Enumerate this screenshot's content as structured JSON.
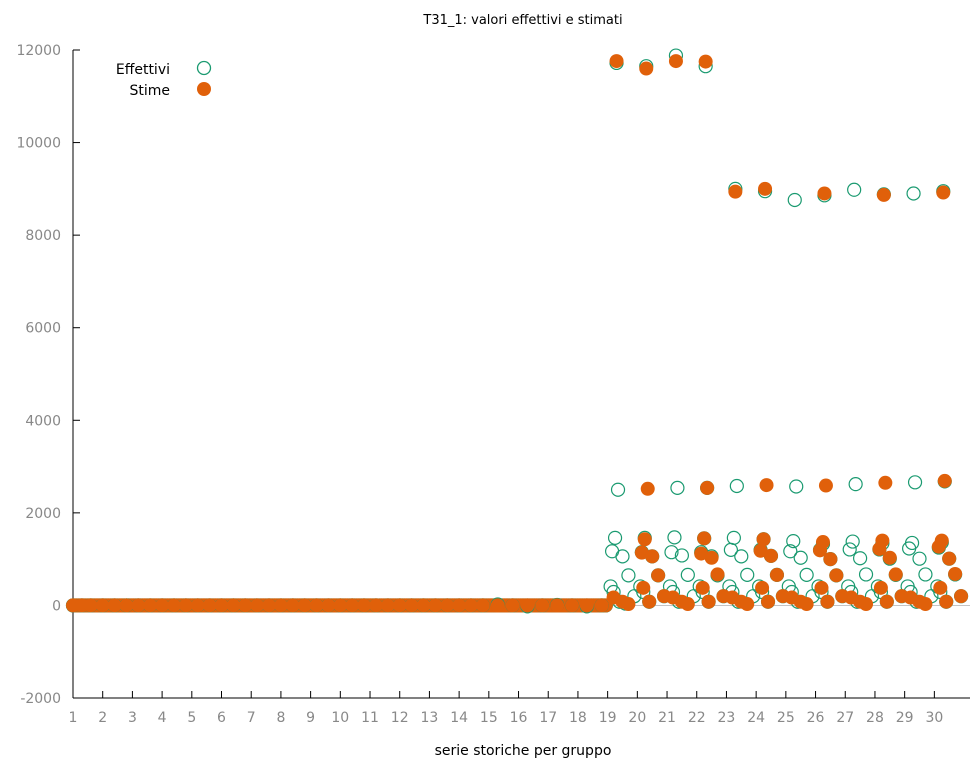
{
  "chart_data": {
    "type": "scatter",
    "title": "T31_1: valori effettivi e stimati",
    "xlabel": "serie storiche per gruppo",
    "ylabel": "",
    "ylim": [
      -2000,
      12000
    ],
    "yticks": [
      "-2000",
      "0",
      "2000",
      "4000",
      "6000",
      "8000",
      "10000",
      "12000"
    ],
    "xticks": [
      "1",
      "2",
      "3",
      "4",
      "5",
      "6",
      "7",
      "8",
      "9",
      "10",
      "11",
      "12",
      "13",
      "14",
      "15",
      "16",
      "17",
      "18",
      "19",
      "20",
      "21",
      "22",
      "23",
      "24",
      "25",
      "26",
      "27",
      "28",
      "29",
      "30"
    ],
    "xlim": [
      1,
      31.2
    ],
    "grid": false,
    "legend_position": "top-left",
    "colors": {
      "effettivi": "#1a9a70",
      "stime": "#e0600a"
    },
    "series": [
      {
        "name": "Effettivi",
        "marker": "open-circle",
        "points": [
          [
            1.0,
            0
          ],
          [
            1.3,
            0
          ],
          [
            1.6,
            0
          ],
          [
            2.0,
            0
          ],
          [
            2.4,
            0
          ],
          [
            2.8,
            0
          ],
          [
            3.2,
            0
          ],
          [
            3.6,
            0
          ],
          [
            4.0,
            0
          ],
          [
            4.4,
            0
          ],
          [
            4.8,
            0
          ],
          [
            5.2,
            0
          ],
          [
            5.6,
            0
          ],
          [
            6.0,
            0
          ],
          [
            6.4,
            0
          ],
          [
            6.8,
            0
          ],
          [
            7.2,
            0
          ],
          [
            7.6,
            0
          ],
          [
            8.0,
            0
          ],
          [
            8.4,
            0
          ],
          [
            8.8,
            0
          ],
          [
            9.2,
            0
          ],
          [
            9.6,
            0
          ],
          [
            10.0,
            0
          ],
          [
            10.4,
            0
          ],
          [
            10.8,
            0
          ],
          [
            11.2,
            0
          ],
          [
            11.6,
            0
          ],
          [
            12.0,
            0
          ],
          [
            12.4,
            0
          ],
          [
            12.8,
            0
          ],
          [
            13.2,
            0
          ],
          [
            13.6,
            0
          ],
          [
            14.0,
            0
          ],
          [
            14.4,
            0
          ],
          [
            14.8,
            0
          ],
          [
            15.3,
            20
          ],
          [
            15.8,
            0
          ],
          [
            16.3,
            -20
          ],
          [
            16.8,
            0
          ],
          [
            17.3,
            10
          ],
          [
            17.8,
            0
          ],
          [
            18.3,
            -20
          ],
          [
            18.8,
            0
          ],
          [
            19.1,
            410
          ],
          [
            19.2,
            290
          ],
          [
            19.15,
            1170
          ],
          [
            19.25,
            1460
          ],
          [
            19.3,
            11720
          ],
          [
            19.35,
            2500
          ],
          [
            19.5,
            1060
          ],
          [
            19.7,
            650
          ],
          [
            19.9,
            200
          ],
          [
            19.4,
            80
          ],
          [
            19.6,
            40
          ],
          [
            20.1,
            410
          ],
          [
            20.2,
            290
          ],
          [
            20.15,
            1150
          ],
          [
            20.25,
            1460
          ],
          [
            20.3,
            11650
          ],
          [
            20.5,
            1060
          ],
          [
            20.7,
            650
          ],
          [
            20.9,
            200
          ],
          [
            20.4,
            80
          ],
          [
            21.1,
            410
          ],
          [
            21.2,
            290
          ],
          [
            21.15,
            1150
          ],
          [
            21.25,
            1470
          ],
          [
            21.3,
            11880
          ],
          [
            21.35,
            2540
          ],
          [
            21.5,
            1080
          ],
          [
            21.7,
            660
          ],
          [
            21.9,
            200
          ],
          [
            21.4,
            80
          ],
          [
            22.1,
            410
          ],
          [
            22.2,
            290
          ],
          [
            22.15,
            1150
          ],
          [
            22.25,
            1450
          ],
          [
            22.3,
            11650
          ],
          [
            22.35,
            2540
          ],
          [
            22.5,
            1060
          ],
          [
            22.7,
            650
          ],
          [
            22.9,
            200
          ],
          [
            22.4,
            80
          ],
          [
            23.1,
            410
          ],
          [
            23.2,
            290
          ],
          [
            23.15,
            1200
          ],
          [
            23.25,
            1460
          ],
          [
            23.3,
            9000
          ],
          [
            23.35,
            2580
          ],
          [
            23.5,
            1060
          ],
          [
            23.7,
            660
          ],
          [
            23.9,
            200
          ],
          [
            23.4,
            80
          ],
          [
            24.1,
            410
          ],
          [
            24.2,
            290
          ],
          [
            24.15,
            1200
          ],
          [
            24.25,
            1430
          ],
          [
            24.3,
            8950
          ],
          [
            24.5,
            1070
          ],
          [
            24.7,
            660
          ],
          [
            24.9,
            200
          ],
          [
            24.4,
            80
          ],
          [
            25.1,
            410
          ],
          [
            25.2,
            290
          ],
          [
            25.15,
            1170
          ],
          [
            25.25,
            1390
          ],
          [
            25.3,
            8760
          ],
          [
            25.35,
            2570
          ],
          [
            25.5,
            1030
          ],
          [
            25.7,
            660
          ],
          [
            25.9,
            200
          ],
          [
            25.4,
            80
          ],
          [
            26.1,
            410
          ],
          [
            26.2,
            290
          ],
          [
            26.15,
            1200
          ],
          [
            26.25,
            1330
          ],
          [
            26.3,
            8860
          ],
          [
            26.5,
            1000
          ],
          [
            26.7,
            650
          ],
          [
            26.9,
            200
          ],
          [
            26.4,
            80
          ],
          [
            27.1,
            410
          ],
          [
            27.2,
            290
          ],
          [
            27.15,
            1210
          ],
          [
            27.25,
            1380
          ],
          [
            27.3,
            8980
          ],
          [
            27.35,
            2620
          ],
          [
            27.5,
            1020
          ],
          [
            27.7,
            670
          ],
          [
            27.9,
            200
          ],
          [
            27.4,
            80
          ],
          [
            28.1,
            410
          ],
          [
            28.2,
            290
          ],
          [
            28.15,
            1210
          ],
          [
            28.25,
            1340
          ],
          [
            28.3,
            8880
          ],
          [
            28.5,
            1010
          ],
          [
            28.7,
            660
          ],
          [
            28.9,
            200
          ],
          [
            28.4,
            80
          ],
          [
            29.1,
            410
          ],
          [
            29.2,
            290
          ],
          [
            29.15,
            1230
          ],
          [
            29.25,
            1350
          ],
          [
            29.3,
            8900
          ],
          [
            29.35,
            2660
          ],
          [
            29.5,
            1010
          ],
          [
            29.7,
            670
          ],
          [
            29.9,
            200
          ],
          [
            29.4,
            80
          ],
          [
            30.1,
            410
          ],
          [
            30.2,
            290
          ],
          [
            30.15,
            1250
          ],
          [
            30.25,
            1360
          ],
          [
            30.3,
            8950
          ],
          [
            30.35,
            2680
          ],
          [
            30.5,
            1010
          ],
          [
            30.7,
            670
          ],
          [
            30.9,
            200
          ],
          [
            30.4,
            80
          ]
        ]
      },
      {
        "name": "Stime",
        "marker": "filled-circle",
        "points": [
          [
            1.0,
            0
          ],
          [
            1.3,
            0
          ],
          [
            1.6,
            0
          ],
          [
            2.0,
            0
          ],
          [
            2.4,
            0
          ],
          [
            2.8,
            0
          ],
          [
            3.2,
            0
          ],
          [
            3.6,
            0
          ],
          [
            4.0,
            0
          ],
          [
            4.4,
            0
          ],
          [
            4.8,
            0
          ],
          [
            5.2,
            0
          ],
          [
            5.6,
            0
          ],
          [
            6.0,
            0
          ],
          [
            6.4,
            0
          ],
          [
            6.8,
            0
          ],
          [
            7.2,
            0
          ],
          [
            7.6,
            0
          ],
          [
            8.0,
            0
          ],
          [
            8.4,
            0
          ],
          [
            8.8,
            0
          ],
          [
            9.2,
            0
          ],
          [
            9.6,
            0
          ],
          [
            10.0,
            0
          ],
          [
            10.4,
            0
          ],
          [
            10.8,
            0
          ],
          [
            11.2,
            0
          ],
          [
            11.6,
            0
          ],
          [
            12.0,
            0
          ],
          [
            12.4,
            0
          ],
          [
            12.8,
            0
          ],
          [
            13.2,
            0
          ],
          [
            13.6,
            0
          ],
          [
            14.0,
            0
          ],
          [
            14.4,
            0
          ],
          [
            14.8,
            0
          ],
          [
            15.3,
            0
          ],
          [
            15.8,
            0
          ],
          [
            16.3,
            0
          ],
          [
            16.8,
            0
          ],
          [
            17.3,
            0
          ],
          [
            17.8,
            0
          ],
          [
            18.3,
            0
          ],
          [
            18.8,
            0
          ],
          [
            19.3,
            11760
          ],
          [
            19.2,
            170
          ],
          [
            19.5,
            80
          ],
          [
            19.7,
            30
          ],
          [
            20.3,
            11600
          ],
          [
            20.35,
            2520
          ],
          [
            20.25,
            1430
          ],
          [
            20.15,
            1140
          ],
          [
            20.2,
            380
          ],
          [
            20.5,
            1060
          ],
          [
            20.7,
            650
          ],
          [
            20.9,
            200
          ],
          [
            20.4,
            80
          ],
          [
            21.3,
            11760
          ],
          [
            21.2,
            170
          ],
          [
            21.5,
            80
          ],
          [
            21.7,
            30
          ],
          [
            22.3,
            11750
          ],
          [
            22.35,
            2540
          ],
          [
            22.25,
            1450
          ],
          [
            22.15,
            1120
          ],
          [
            22.2,
            380
          ],
          [
            22.5,
            1030
          ],
          [
            22.7,
            670
          ],
          [
            22.9,
            200
          ],
          [
            22.4,
            80
          ],
          [
            23.3,
            8940
          ],
          [
            23.2,
            170
          ],
          [
            23.5,
            80
          ],
          [
            23.7,
            30
          ],
          [
            24.3,
            9000
          ],
          [
            24.35,
            2600
          ],
          [
            24.25,
            1430
          ],
          [
            24.15,
            1180
          ],
          [
            24.2,
            380
          ],
          [
            24.5,
            1070
          ],
          [
            24.7,
            660
          ],
          [
            24.9,
            200
          ],
          [
            24.4,
            80
          ],
          [
            25.2,
            170
          ],
          [
            25.5,
            80
          ],
          [
            25.7,
            30
          ],
          [
            26.3,
            8900
          ],
          [
            26.35,
            2590
          ],
          [
            26.25,
            1370
          ],
          [
            26.15,
            1190
          ],
          [
            26.2,
            380
          ],
          [
            26.5,
            1000
          ],
          [
            26.7,
            650
          ],
          [
            26.9,
            200
          ],
          [
            26.4,
            80
          ],
          [
            27.2,
            170
          ],
          [
            27.5,
            80
          ],
          [
            27.7,
            30
          ],
          [
            28.3,
            8870
          ],
          [
            28.35,
            2650
          ],
          [
            28.25,
            1400
          ],
          [
            28.15,
            1220
          ],
          [
            28.2,
            380
          ],
          [
            28.5,
            1030
          ],
          [
            28.7,
            670
          ],
          [
            28.9,
            200
          ],
          [
            28.4,
            80
          ],
          [
            29.2,
            170
          ],
          [
            29.5,
            80
          ],
          [
            29.7,
            30
          ],
          [
            30.3,
            8920
          ],
          [
            30.35,
            2690
          ],
          [
            30.25,
            1400
          ],
          [
            30.15,
            1270
          ],
          [
            30.2,
            380
          ],
          [
            30.5,
            1010
          ],
          [
            30.7,
            680
          ],
          [
            30.9,
            200
          ],
          [
            30.4,
            80
          ]
        ]
      }
    ]
  }
}
